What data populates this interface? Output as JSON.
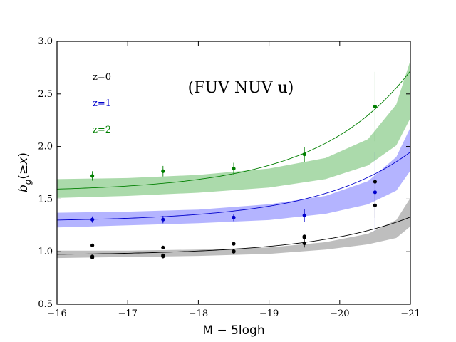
{
  "chart_data": {
    "type": "scatter",
    "title": "",
    "annotation": "(FUV NUV u)",
    "xlabel": "M − 5logh",
    "ylabel": "b_g(≥x)",
    "xlim": [
      -16,
      -21
    ],
    "ylim": [
      0.5,
      3.0
    ],
    "xticks": [
      -16,
      -17,
      -18,
      -19,
      -20,
      -21
    ],
    "xtick_labels": [
      "−16",
      "−17",
      "−18",
      "−19",
      "−20",
      "−21"
    ],
    "yticks": [
      0.5,
      1.0,
      1.5,
      2.0,
      2.5,
      3.0
    ],
    "ytick_labels": [
      "0.5",
      "1.0",
      "1.5",
      "2.0",
      "2.5",
      "3.0"
    ],
    "legend_position": "top-left",
    "series": [
      {
        "name": "z=0",
        "color": "#000000",
        "band_color": "#888888",
        "fit": {
          "a": 0.975,
          "b": 0.02,
          "k": 1.45
        },
        "band": {
          "lower": [
            0.94,
            0.95,
            0.96,
            0.98,
            1.02,
            1.07,
            1.13,
            1.24
          ],
          "upper": [
            1.01,
            1.01,
            1.02,
            1.04,
            1.09,
            1.17,
            1.3,
            1.51
          ]
        },
        "points": [
          {
            "x": -16.5,
            "y": 1.06
          },
          {
            "x": -16.5,
            "y": 0.955
          },
          {
            "x": -16.5,
            "y": 0.945
          },
          {
            "x": -17.5,
            "y": 1.04
          },
          {
            "x": -17.5,
            "y": 0.965
          },
          {
            "x": -17.5,
            "y": 0.955
          },
          {
            "x": -18.5,
            "y": 1.075
          },
          {
            "x": -18.5,
            "y": 1.005
          },
          {
            "x": -18.5,
            "y": 1.0
          },
          {
            "x": -19.5,
            "y": 1.145
          },
          {
            "x": -19.5,
            "y": 1.135
          },
          {
            "x": -19.5,
            "y": 1.08,
            "err": 0.04
          },
          {
            "x": -20.5,
            "y": 1.665
          },
          {
            "x": -20.5,
            "y": 1.44,
            "err": 0.12
          }
        ]
      },
      {
        "name": "z=1",
        "color": "#0000cc",
        "band_color": "#7777ff",
        "fit": {
          "a": 1.3,
          "b": 0.033,
          "k": 1.5
        },
        "band": {
          "lower": [
            1.23,
            1.25,
            1.27,
            1.3,
            1.36,
            1.45,
            1.58,
            1.77
          ],
          "upper": [
            1.37,
            1.38,
            1.4,
            1.45,
            1.53,
            1.67,
            1.9,
            2.18
          ]
        },
        "points": [
          {
            "x": -16.5,
            "y": 1.305,
            "err": 0.03
          },
          {
            "x": -17.5,
            "y": 1.305,
            "err": 0.035
          },
          {
            "x": -18.5,
            "y": 1.325,
            "err": 0.035
          },
          {
            "x": -19.5,
            "y": 1.345,
            "err": 0.06
          },
          {
            "x": -20.5,
            "y": 1.565,
            "err": 0.38
          }
        ]
      },
      {
        "name": "z=2",
        "color": "#007f00",
        "band_color": "#66bb66",
        "fit": {
          "a": 1.595,
          "b": 0.055,
          "k": 1.52
        },
        "band": {
          "lower": [
            1.51,
            1.53,
            1.56,
            1.61,
            1.69,
            1.82,
            2.01,
            2.27
          ],
          "upper": [
            1.69,
            1.7,
            1.73,
            1.79,
            1.89,
            2.07,
            2.4,
            2.82
          ]
        },
        "points": [
          {
            "x": -16.5,
            "y": 1.72,
            "err": 0.045
          },
          {
            "x": -17.5,
            "y": 1.765,
            "err": 0.05
          },
          {
            "x": -18.5,
            "y": 1.79,
            "err": 0.055
          },
          {
            "x": -19.5,
            "y": 1.925,
            "err": 0.07
          },
          {
            "x": -20.5,
            "y": 2.38,
            "err": 0.33
          }
        ]
      }
    ]
  }
}
